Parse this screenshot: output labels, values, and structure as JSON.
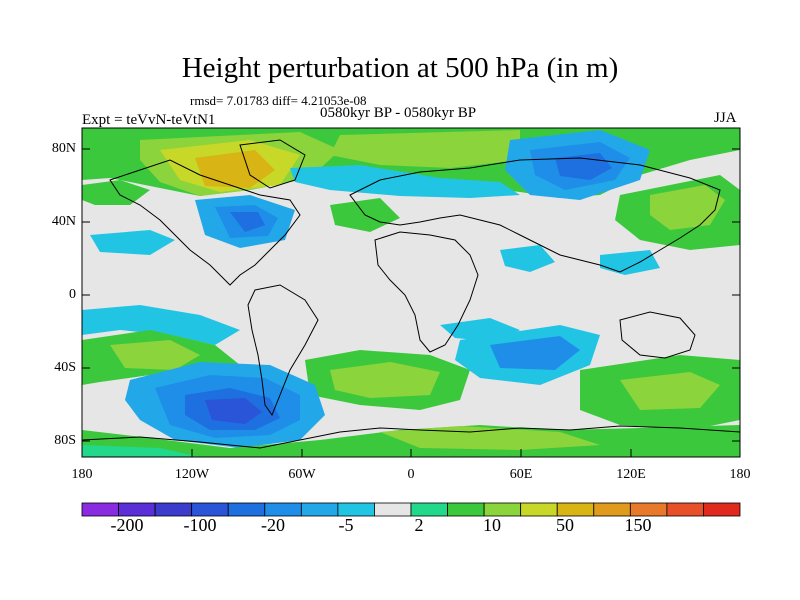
{
  "header": {
    "title": "Height perturbation at 500 hPa (in m)",
    "stats": "rmsd= 7.01783 diff= 4.21053e-08",
    "experiment": "Expt = teVvN-teVtN1",
    "period": "0580kyr BP - 0580kyr BP",
    "season": "JJA"
  },
  "axes": {
    "lat_ticks": [
      "80N",
      "40N",
      "0",
      "40S",
      "80S"
    ],
    "lon_ticks": [
      "180",
      "120W",
      "60W",
      "0",
      "60E",
      "120E",
      "180"
    ]
  },
  "colorbar": {
    "colors": [
      "#8a2be2",
      "#5a2fd8",
      "#3c3ccc",
      "#2a55d8",
      "#1e6fe0",
      "#1e8ee8",
      "#22a8e8",
      "#22c4e4",
      "#e6e6e6",
      "#22d88a",
      "#3cc83c",
      "#8cd43c",
      "#c8d828",
      "#d8b414",
      "#e09a1e",
      "#e8782a",
      "#e8502a",
      "#e02a1e"
    ],
    "labels": [
      "-200",
      "-100",
      "-20",
      "-5",
      "2",
      "10",
      "50",
      "150"
    ]
  },
  "palette": {
    "neutral": "#e6e6e6",
    "coastline": "#000000"
  }
}
